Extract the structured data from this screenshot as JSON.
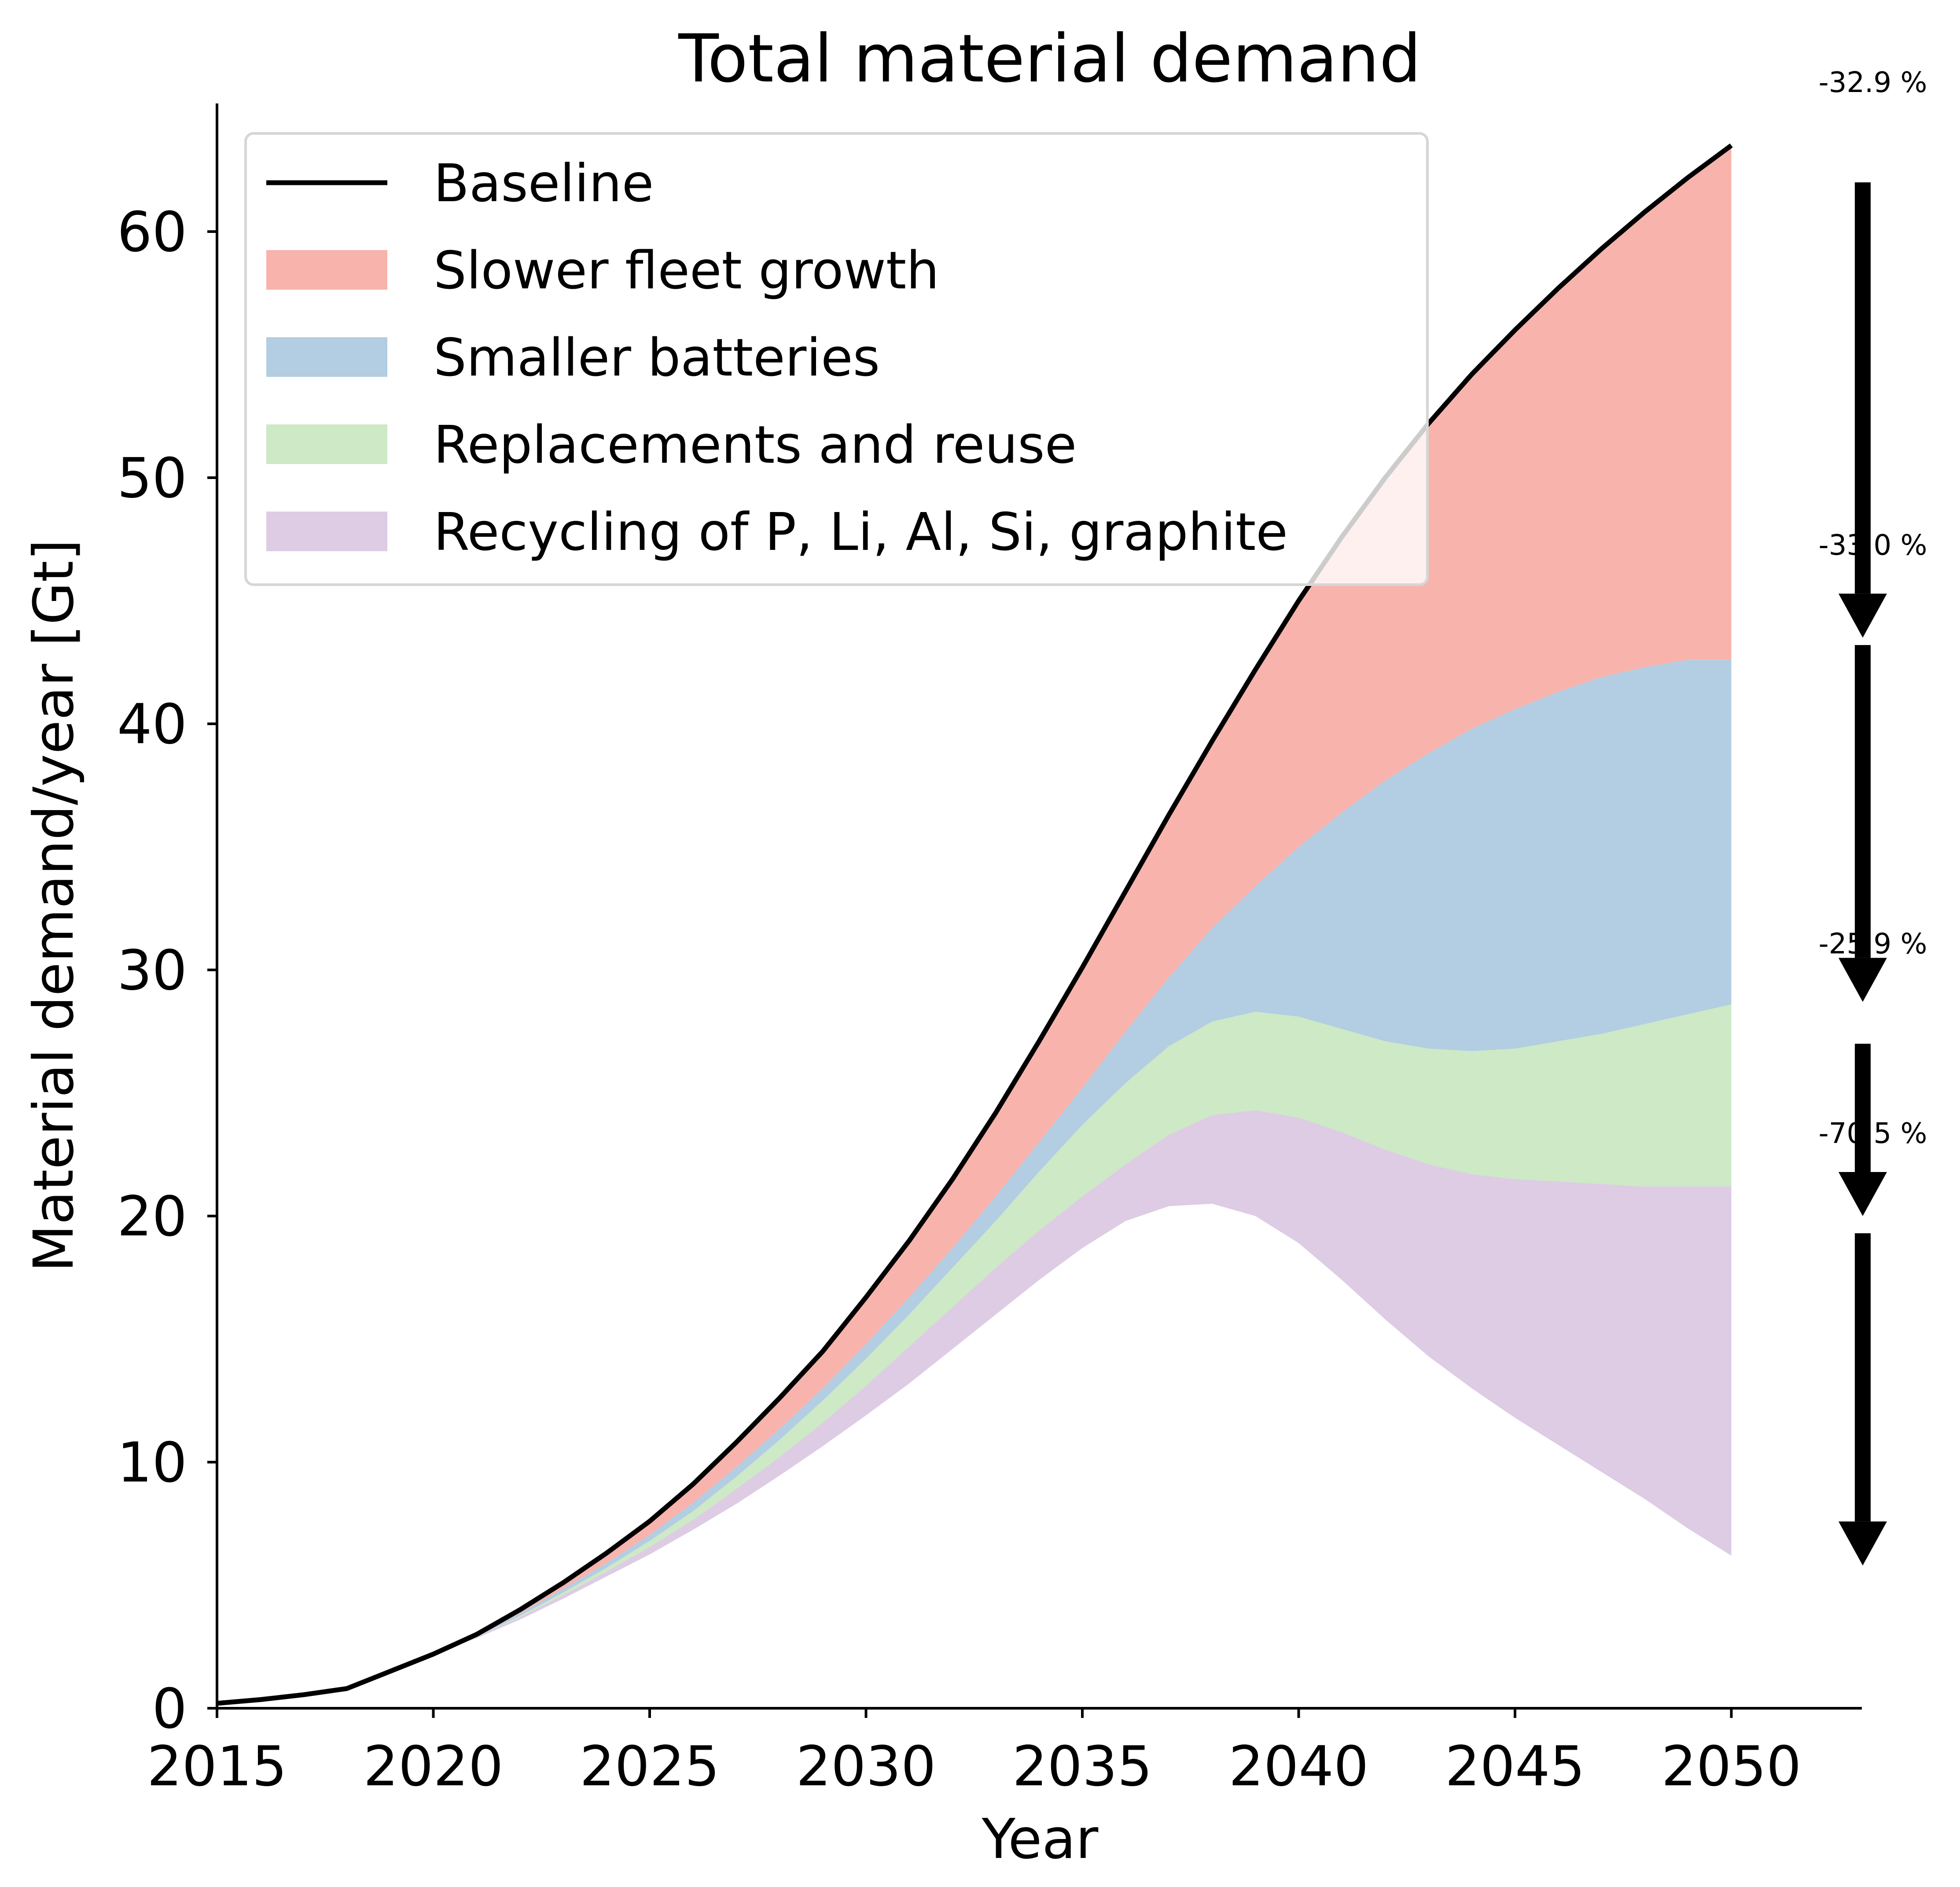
{
  "chart_data": {
    "type": "area",
    "title": "Total material demand",
    "xlabel": "Year",
    "ylabel": "Material demand/year [Gt]",
    "xlim": [
      2015,
      2053
    ],
    "ylim": [
      0,
      65
    ],
    "xticks": [
      2015,
      2020,
      2025,
      2030,
      2035,
      2040,
      2045,
      2050
    ],
    "yticks": [
      0,
      10,
      20,
      30,
      40,
      50,
      60
    ],
    "grid": false,
    "legend_position": "top-left",
    "colors": {
      "baseline": "#000000",
      "slower_fleet_growth": "#f8b3ad",
      "smaller_batteries": "#b3cde2",
      "replacements_and_reuse": "#cde9c5",
      "recycling": "#ddcce4",
      "arrow": "#000000"
    },
    "x": [
      2015,
      2016,
      2017,
      2018,
      2019,
      2020,
      2021,
      2022,
      2023,
      2024,
      2025,
      2026,
      2027,
      2028,
      2029,
      2030,
      2031,
      2032,
      2033,
      2034,
      2035,
      2036,
      2037,
      2038,
      2039,
      2040,
      2041,
      2042,
      2043,
      2044,
      2045,
      2046,
      2047,
      2048,
      2049,
      2050
    ],
    "series": [
      {
        "name": "Baseline",
        "kind": "line",
        "values": [
          0.2,
          0.35,
          0.55,
          0.8,
          1.5,
          2.2,
          3.0,
          4.0,
          5.1,
          6.3,
          7.6,
          9.1,
          10.8,
          12.6,
          14.5,
          16.7,
          19.0,
          21.5,
          24.2,
          27.1,
          30.1,
          33.2,
          36.3,
          39.3,
          42.2,
          45.0,
          47.6,
          50.0,
          52.2,
          54.2,
          56.0,
          57.7,
          59.3,
          60.8,
          62.2,
          63.5
        ]
      },
      {
        "name": "Slower fleet growth",
        "kind": "area",
        "values": [
          0.2,
          0.35,
          0.55,
          0.8,
          1.5,
          2.2,
          2.95,
          3.85,
          4.85,
          5.9,
          7.05,
          8.35,
          9.8,
          11.35,
          13.0,
          14.8,
          16.7,
          18.7,
          20.8,
          23.0,
          25.2,
          27.5,
          29.7,
          31.7,
          33.4,
          35.0,
          36.4,
          37.7,
          38.8,
          39.8,
          40.6,
          41.3,
          41.9,
          42.3,
          42.6,
          42.6
        ]
      },
      {
        "name": "Smaller batteries",
        "kind": "area",
        "values": [
          0.2,
          0.35,
          0.55,
          0.8,
          1.5,
          2.2,
          2.9,
          3.75,
          4.7,
          5.7,
          6.8,
          8.0,
          9.4,
          10.9,
          12.5,
          14.2,
          16.0,
          17.9,
          19.8,
          21.8,
          23.7,
          25.4,
          26.9,
          27.9,
          28.3,
          28.1,
          27.6,
          27.1,
          26.8,
          26.7,
          26.8,
          27.1,
          27.4,
          27.8,
          28.2,
          28.6
        ]
      },
      {
        "name": "Replacements and reuse",
        "kind": "area",
        "values": [
          0.2,
          0.35,
          0.55,
          0.8,
          1.5,
          2.2,
          2.9,
          3.7,
          4.6,
          5.55,
          6.55,
          7.65,
          8.9,
          10.2,
          11.6,
          13.1,
          14.7,
          16.3,
          17.9,
          19.4,
          20.8,
          22.1,
          23.3,
          24.1,
          24.3,
          24.0,
          23.4,
          22.7,
          22.1,
          21.7,
          21.5,
          21.4,
          21.3,
          21.2,
          21.2,
          21.2
        ]
      },
      {
        "name": "Recycling of P, Li, Al, Si, graphite",
        "kind": "area",
        "values": [
          0.2,
          0.35,
          0.55,
          0.8,
          1.5,
          2.2,
          2.85,
          3.6,
          4.45,
          5.35,
          6.25,
          7.25,
          8.3,
          9.45,
          10.65,
          11.9,
          13.2,
          14.6,
          16.0,
          17.4,
          18.7,
          19.8,
          20.4,
          20.5,
          20.0,
          18.9,
          17.4,
          15.8,
          14.3,
          13.0,
          11.8,
          10.7,
          9.6,
          8.5,
          7.3,
          6.2
        ]
      }
    ],
    "annotations": [
      {
        "label": "-32.9 %",
        "from": 62.0,
        "to": 43.5
      },
      {
        "label": "-33.0 %",
        "from": 43.2,
        "to": 28.7
      },
      {
        "label": "-25.9 %",
        "from": 27.0,
        "to": 20.0
      },
      {
        "label": "-70.5 %",
        "from": 19.3,
        "to": 5.8
      }
    ]
  }
}
